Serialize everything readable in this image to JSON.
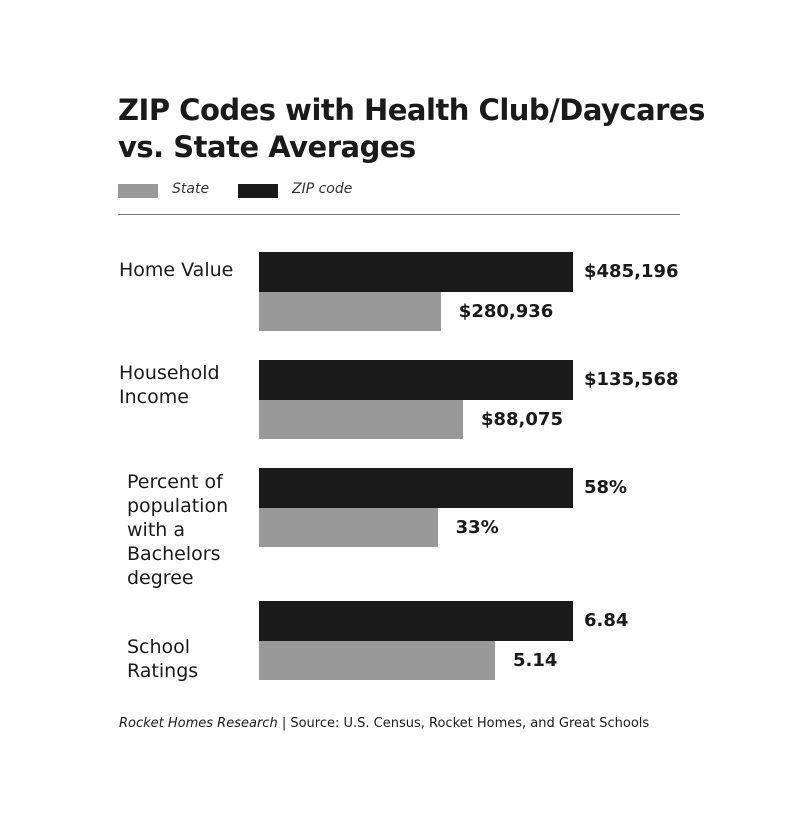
{
  "chart_data": {
    "type": "bar",
    "orientation": "horizontal",
    "title": "ZIP Codes with Health Club/Daycares vs. State Averages",
    "title_lines": [
      "ZIP Codes with Health Club/Daycares",
      "vs. State Averages"
    ],
    "legend": {
      "placement": "top-left",
      "entries": [
        {
          "name": "State",
          "color": "#999999"
        },
        {
          "name": "ZIP code",
          "color": "#1a1a1a"
        }
      ]
    },
    "categories": [
      {
        "label_lines": [
          "Home Value"
        ],
        "zip": 485196,
        "state": 280936,
        "zip_label": "$485,196",
        "state_label": "$280,936"
      },
      {
        "label_lines": [
          "Household",
          "Income"
        ],
        "zip": 135568,
        "state": 88075,
        "zip_label": "$135,568",
        "state_label": "$88,075"
      },
      {
        "label_lines": [
          "Percent of",
          "population",
          "with a",
          "Bachelors",
          "degree"
        ],
        "zip": 58,
        "state": 33,
        "zip_label": "58%",
        "state_label": "33%"
      },
      {
        "label_lines": [
          "School",
          "Ratings"
        ],
        "zip": 6.84,
        "state": 5.14,
        "zip_label": "6.84",
        "state_label": "5.14"
      }
    ],
    "grid": false,
    "colors": {
      "zip": "#1a1a1a",
      "state": "#999999"
    }
  },
  "footer": {
    "research": "Rocket Homes Research",
    "separator": " | ",
    "source": "Source: U.S. Census, Rocket Homes, and Great Schools"
  }
}
